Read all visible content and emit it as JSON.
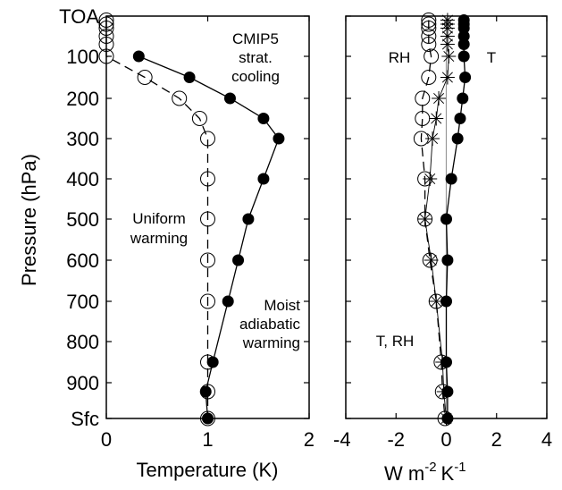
{
  "chart_data": [
    {
      "type": "line",
      "panel": "left",
      "xlabel": "Temperature (K)",
      "ylabel": "Pressure (hPa)",
      "xlim": [
        0,
        2
      ],
      "x_ticks": [
        "0",
        "1",
        "2"
      ],
      "y_scale": "level-index (top = TOA, bottom = Sfc)",
      "y_ticks": [
        "TOA",
        "100",
        "200",
        "300",
        "400",
        "500",
        "600",
        "700",
        "800",
        "900",
        "Sfc"
      ],
      "grid": false,
      "annotations": [
        {
          "text_lines": [
            "CMIP5",
            "strat.",
            "cooling"
          ]
        },
        {
          "text_lines": [
            "Uniform",
            "warming"
          ]
        },
        {
          "text_lines": [
            "Moist",
            "adiabatic",
            "warming"
          ]
        }
      ],
      "series": [
        {
          "marker": "filled-circle",
          "line": "solid",
          "points": [
            {
              "x": 0.32,
              "y": 100
            },
            {
              "x": 0.82,
              "y": 150
            },
            {
              "x": 1.22,
              "y": 200
            },
            {
              "x": 1.55,
              "y": 250
            },
            {
              "x": 1.7,
              "y": 300
            },
            {
              "x": 1.55,
              "y": 400
            },
            {
              "x": 1.4,
              "y": 500
            },
            {
              "x": 1.3,
              "y": 600
            },
            {
              "x": 1.2,
              "y": 700
            },
            {
              "x": 1.05,
              "y": 850
            },
            {
              "x": 0.98,
              "y": 925
            },
            {
              "x": 1.0,
              "y": 1000
            }
          ]
        },
        {
          "marker": "open-circle-with-dash",
          "line": "dashed",
          "points": [
            {
              "x": 0.0,
              "y": 10
            },
            {
              "x": 0.0,
              "y": 20
            },
            {
              "x": 0.0,
              "y": 30
            },
            {
              "x": 0.0,
              "y": 50
            },
            {
              "x": 0.0,
              "y": 70
            },
            {
              "x": 0.0,
              "y": 100
            },
            {
              "x": 0.38,
              "y": 150
            },
            {
              "x": 0.72,
              "y": 200
            },
            {
              "x": 0.92,
              "y": 250
            },
            {
              "x": 1.0,
              "y": 300
            },
            {
              "x": 1.0,
              "y": 400
            },
            {
              "x": 1.0,
              "y": 500
            },
            {
              "x": 1.0,
              "y": 600
            },
            {
              "x": 1.0,
              "y": 700
            },
            {
              "x": 1.0,
              "y": 850
            },
            {
              "x": 1.0,
              "y": 925
            },
            {
              "x": 1.0,
              "y": 1000
            }
          ]
        }
      ]
    },
    {
      "type": "line",
      "panel": "right",
      "xlabel": "W m-2 K-1",
      "xlim": [
        -4,
        4
      ],
      "x_ticks": [
        "-4",
        "-2",
        "0",
        "2",
        "4"
      ],
      "y_ticks_shared": true,
      "grid": false,
      "annotations": [
        {
          "text_lines": [
            "RH"
          ]
        },
        {
          "text_lines": [
            "T"
          ]
        },
        {
          "text_lines": [
            "T, RH"
          ]
        }
      ],
      "zero_line": true,
      "series": [
        {
          "name": "T",
          "marker": "filled-circle",
          "line": "solid",
          "points": [
            {
              "x": 0.7,
              "y": 10
            },
            {
              "x": 0.7,
              "y": 20
            },
            {
              "x": 0.7,
              "y": 30
            },
            {
              "x": 0.7,
              "y": 50
            },
            {
              "x": 0.7,
              "y": 70
            },
            {
              "x": 0.7,
              "y": 100
            },
            {
              "x": 0.75,
              "y": 150
            },
            {
              "x": 0.65,
              "y": 200
            },
            {
              "x": 0.55,
              "y": 250
            },
            {
              "x": 0.45,
              "y": 300
            },
            {
              "x": 0.2,
              "y": 400
            },
            {
              "x": 0.0,
              "y": 500
            },
            {
              "x": 0.05,
              "y": 600
            },
            {
              "x": 0.0,
              "y": 700
            },
            {
              "x": 0.0,
              "y": 850
            },
            {
              "x": 0.05,
              "y": 925
            },
            {
              "x": 0.05,
              "y": 1000
            }
          ]
        },
        {
          "name": "RH",
          "marker": "open-circle",
          "line": "dashed",
          "points": [
            {
              "x": -0.7,
              "y": 10
            },
            {
              "x": -0.7,
              "y": 20
            },
            {
              "x": -0.7,
              "y": 30
            },
            {
              "x": -0.7,
              "y": 50
            },
            {
              "x": -0.7,
              "y": 70
            },
            {
              "x": -0.6,
              "y": 100
            },
            {
              "x": -0.7,
              "y": 150
            },
            {
              "x": -0.95,
              "y": 200
            },
            {
              "x": -0.95,
              "y": 250
            },
            {
              "x": -1.0,
              "y": 300
            },
            {
              "x": -0.85,
              "y": 400
            },
            {
              "x": -0.85,
              "y": 500
            },
            {
              "x": -0.65,
              "y": 600
            },
            {
              "x": -0.4,
              "y": 700
            },
            {
              "x": -0.2,
              "y": 850
            },
            {
              "x": -0.15,
              "y": 925
            },
            {
              "x": -0.05,
              "y": 1000
            }
          ]
        },
        {
          "name": "T, RH",
          "marker": "asterisk",
          "line": "solid-thin",
          "points": [
            {
              "x": 0.05,
              "y": 10
            },
            {
              "x": 0.05,
              "y": 20
            },
            {
              "x": 0.05,
              "y": 30
            },
            {
              "x": 0.05,
              "y": 50
            },
            {
              "x": 0.05,
              "y": 70
            },
            {
              "x": 0.1,
              "y": 100
            },
            {
              "x": 0.05,
              "y": 150
            },
            {
              "x": -0.3,
              "y": 200
            },
            {
              "x": -0.4,
              "y": 250
            },
            {
              "x": -0.55,
              "y": 300
            },
            {
              "x": -0.65,
              "y": 400
            },
            {
              "x": -0.85,
              "y": 500
            },
            {
              "x": -0.6,
              "y": 600
            },
            {
              "x": -0.4,
              "y": 700
            },
            {
              "x": -0.15,
              "y": 850
            },
            {
              "x": -0.1,
              "y": 925
            },
            {
              "x": 0.0,
              "y": 1000
            }
          ]
        }
      ]
    }
  ],
  "labels": {
    "left_xlabel": "Temperature (K)",
    "right_xlabel_main": "W m",
    "right_xlabel_exp1": "-2",
    "right_xlabel_k": "K",
    "right_xlabel_exp2": "-1",
    "ylabel": "Pressure (hPa)"
  }
}
